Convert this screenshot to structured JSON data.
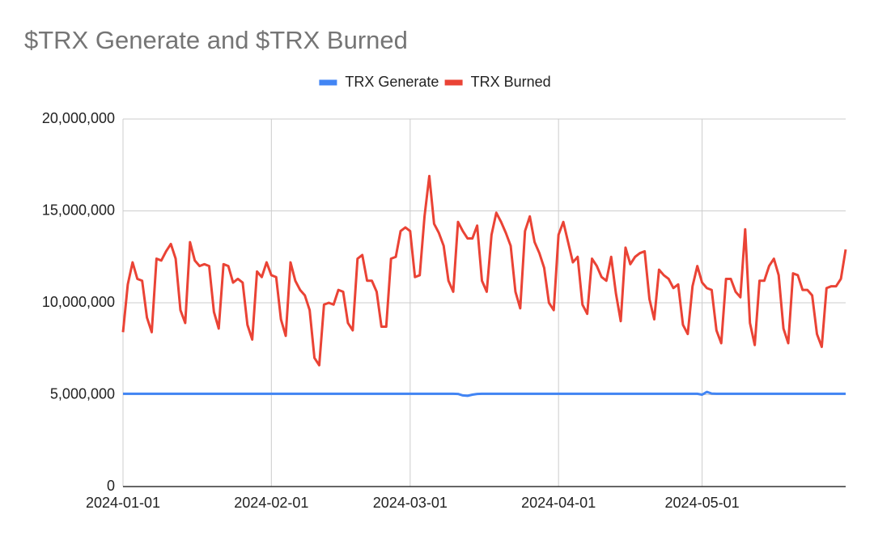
{
  "chart_data": {
    "type": "line",
    "title": "$TRX Generate and $TRX Burned",
    "x": [
      "2024-01-01",
      "2024-01-02",
      "2024-01-03",
      "2024-01-04",
      "2024-01-05",
      "2024-01-06",
      "2024-01-07",
      "2024-01-08",
      "2024-01-09",
      "2024-01-10",
      "2024-01-11",
      "2024-01-12",
      "2024-01-13",
      "2024-01-14",
      "2024-01-15",
      "2024-01-16",
      "2024-01-17",
      "2024-01-18",
      "2024-01-19",
      "2024-01-20",
      "2024-01-21",
      "2024-01-22",
      "2024-01-23",
      "2024-01-24",
      "2024-01-25",
      "2024-01-26",
      "2024-01-27",
      "2024-01-28",
      "2024-01-29",
      "2024-01-30",
      "2024-01-31",
      "2024-02-01",
      "2024-02-02",
      "2024-02-03",
      "2024-02-04",
      "2024-02-05",
      "2024-02-06",
      "2024-02-07",
      "2024-02-08",
      "2024-02-09",
      "2024-02-10",
      "2024-02-11",
      "2024-02-12",
      "2024-02-13",
      "2024-02-14",
      "2024-02-15",
      "2024-02-16",
      "2024-02-17",
      "2024-02-18",
      "2024-02-19",
      "2024-02-20",
      "2024-02-21",
      "2024-02-22",
      "2024-02-23",
      "2024-02-24",
      "2024-02-25",
      "2024-02-26",
      "2024-02-27",
      "2024-02-28",
      "2024-02-29",
      "2024-03-01",
      "2024-03-02",
      "2024-03-03",
      "2024-03-04",
      "2024-03-05",
      "2024-03-06",
      "2024-03-07",
      "2024-03-08",
      "2024-03-09",
      "2024-03-10",
      "2024-03-11",
      "2024-03-12",
      "2024-03-13",
      "2024-03-14",
      "2024-03-15",
      "2024-03-16",
      "2024-03-17",
      "2024-03-18",
      "2024-03-19",
      "2024-03-20",
      "2024-03-21",
      "2024-03-22",
      "2024-03-23",
      "2024-03-24",
      "2024-03-25",
      "2024-03-26",
      "2024-03-27",
      "2024-03-28",
      "2024-03-29",
      "2024-03-30",
      "2024-03-31",
      "2024-04-01",
      "2024-04-02",
      "2024-04-03",
      "2024-04-04",
      "2024-04-05",
      "2024-04-06",
      "2024-04-07",
      "2024-04-08",
      "2024-04-09",
      "2024-04-10",
      "2024-04-11",
      "2024-04-12",
      "2024-04-13",
      "2024-04-14",
      "2024-04-15",
      "2024-04-16",
      "2024-04-17",
      "2024-04-18",
      "2024-04-19",
      "2024-04-20",
      "2024-04-21",
      "2024-04-22",
      "2024-04-23",
      "2024-04-24",
      "2024-04-25",
      "2024-04-26",
      "2024-04-27",
      "2024-04-28",
      "2024-04-29",
      "2024-04-30",
      "2024-05-01",
      "2024-05-02",
      "2024-05-03",
      "2024-05-04",
      "2024-05-05",
      "2024-05-06",
      "2024-05-07",
      "2024-05-08",
      "2024-05-09",
      "2024-05-10",
      "2024-05-11",
      "2024-05-12",
      "2024-05-13",
      "2024-05-14",
      "2024-05-15",
      "2024-05-16",
      "2024-05-17",
      "2024-05-18",
      "2024-05-19",
      "2024-05-20",
      "2024-05-21",
      "2024-05-22",
      "2024-05-23",
      "2024-05-24",
      "2024-05-25",
      "2024-05-26",
      "2024-05-27",
      "2024-05-28",
      "2024-05-29",
      "2024-05-30",
      "2024-05-31"
    ],
    "series": [
      {
        "name": "TRX Generate",
        "color": "#4285f4",
        "values": [
          5050000,
          5050000,
          5050000,
          5050000,
          5050000,
          5050000,
          5050000,
          5050000,
          5050000,
          5050000,
          5050000,
          5050000,
          5050000,
          5050000,
          5050000,
          5050000,
          5050000,
          5050000,
          5050000,
          5050000,
          5050000,
          5050000,
          5050000,
          5050000,
          5050000,
          5050000,
          5050000,
          5050000,
          5050000,
          5050000,
          5050000,
          5050000,
          5050000,
          5050000,
          5050000,
          5050000,
          5050000,
          5050000,
          5050000,
          5050000,
          5050000,
          5050000,
          5050000,
          5050000,
          5050000,
          5050000,
          5050000,
          5050000,
          5050000,
          5050000,
          5050000,
          5050000,
          5050000,
          5050000,
          5050000,
          5050000,
          5050000,
          5050000,
          5050000,
          5050000,
          5050000,
          5050000,
          5050000,
          5050000,
          5050000,
          5050000,
          5050000,
          5050000,
          5050000,
          5050000,
          5040000,
          4960000,
          4940000,
          5000000,
          5040000,
          5050000,
          5050000,
          5050000,
          5050000,
          5050000,
          5050000,
          5050000,
          5050000,
          5050000,
          5050000,
          5050000,
          5050000,
          5050000,
          5050000,
          5050000,
          5050000,
          5050000,
          5050000,
          5050000,
          5050000,
          5050000,
          5050000,
          5050000,
          5050000,
          5050000,
          5050000,
          5050000,
          5050000,
          5050000,
          5050000,
          5050000,
          5050000,
          5050000,
          5050000,
          5050000,
          5050000,
          5050000,
          5050000,
          5050000,
          5050000,
          5050000,
          5050000,
          5050000,
          5050000,
          5050000,
          5050000,
          5000000,
          5150000,
          5060000,
          5050000,
          5050000,
          5050000,
          5050000,
          5050000,
          5050000,
          5050000,
          5050000,
          5050000,
          5050000,
          5050000,
          5050000,
          5050000,
          5050000,
          5050000,
          5050000,
          5050000,
          5050000,
          5050000,
          5050000,
          5050000,
          5050000,
          5050000,
          5050000,
          5050000,
          5050000,
          5050000,
          5050000
        ]
      },
      {
        "name": "TRX Burned",
        "color": "#ea4335",
        "values": [
          8400000,
          11000000,
          12200000,
          11300000,
          11200000,
          9200000,
          8400000,
          12400000,
          12300000,
          12800000,
          13200000,
          12400000,
          9600000,
          8900000,
          13300000,
          12300000,
          12000000,
          12100000,
          12000000,
          9500000,
          8600000,
          12100000,
          12000000,
          11100000,
          11300000,
          11100000,
          8800000,
          8000000,
          11700000,
          11400000,
          12200000,
          11500000,
          11400000,
          9100000,
          8200000,
          12200000,
          11200000,
          10700000,
          10400000,
          9600000,
          7000000,
          6600000,
          9900000,
          10000000,
          9900000,
          10700000,
          10600000,
          8900000,
          8500000,
          12400000,
          12600000,
          11200000,
          11200000,
          10600000,
          8700000,
          8700000,
          12400000,
          12500000,
          13900000,
          14100000,
          13900000,
          11400000,
          11500000,
          14700000,
          16900000,
          14300000,
          13800000,
          13100000,
          11200000,
          10600000,
          14400000,
          13900000,
          13500000,
          13500000,
          14200000,
          11200000,
          10600000,
          13700000,
          14900000,
          14400000,
          13800000,
          13100000,
          10600000,
          9700000,
          13900000,
          14700000,
          13300000,
          12700000,
          11900000,
          10000000,
          9600000,
          13700000,
          14400000,
          13300000,
          12200000,
          12500000,
          9900000,
          9400000,
          12400000,
          12000000,
          11400000,
          11200000,
          12500000,
          10500000,
          9000000,
          13000000,
          12100000,
          12500000,
          12700000,
          12800000,
          10200000,
          9100000,
          11800000,
          11500000,
          11300000,
          10800000,
          11000000,
          8800000,
          8300000,
          10900000,
          12000000,
          11100000,
          10800000,
          10700000,
          8500000,
          7800000,
          11300000,
          11300000,
          10600000,
          10300000,
          14000000,
          8900000,
          7700000,
          11200000,
          11200000,
          12000000,
          12400000,
          11500000,
          8600000,
          7800000,
          11600000,
          11500000,
          10700000,
          10700000,
          10400000,
          8300000,
          7600000,
          10800000,
          10900000,
          10900000,
          11300000,
          12900000
        ]
      }
    ],
    "xlim": [
      "2024-01-01",
      "2024-05-31"
    ],
    "xticks": [
      "2024-01-01",
      "2024-02-01",
      "2024-03-01",
      "2024-04-01",
      "2024-05-01"
    ],
    "ylim": [
      0,
      20000000
    ],
    "yticks": [
      0,
      {
        "value": 5000000,
        "label": "5,000,000"
      },
      {
        "value": 10000000,
        "label": "10,000,000"
      },
      {
        "value": 15000000,
        "label": "15,000,000"
      },
      {
        "value": 20000000,
        "label": "20,000,000"
      }
    ],
    "grid": true,
    "legend": "top"
  }
}
